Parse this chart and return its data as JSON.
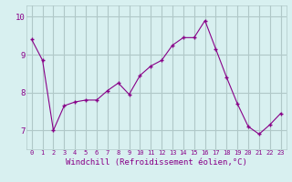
{
  "x": [
    0,
    1,
    2,
    3,
    4,
    5,
    6,
    7,
    8,
    9,
    10,
    11,
    12,
    13,
    14,
    15,
    16,
    17,
    18,
    19,
    20,
    21,
    22,
    23
  ],
  "y": [
    9.4,
    8.85,
    7.0,
    7.65,
    7.75,
    7.8,
    7.8,
    8.05,
    8.25,
    7.95,
    8.45,
    8.7,
    8.85,
    9.25,
    9.45,
    9.45,
    9.9,
    9.15,
    8.4,
    7.7,
    7.1,
    6.9,
    7.15,
    7.45
  ],
  "line_color": "#880088",
  "marker": "+",
  "bg_color": "#d8f0f0",
  "grid_color": "#b0c8c8",
  "xlabel": "Windchill (Refroidissement éolien,°C)",
  "xlabel_color": "#880088",
  "tick_color": "#880088",
  "ylim": [
    6.5,
    10.3
  ],
  "xlim": [
    -0.5,
    23.5
  ],
  "yticks": [
    7,
    8,
    9,
    10
  ],
  "xticks": [
    0,
    1,
    2,
    3,
    4,
    5,
    6,
    7,
    8,
    9,
    10,
    11,
    12,
    13,
    14,
    15,
    16,
    17,
    18,
    19,
    20,
    21,
    22,
    23
  ]
}
